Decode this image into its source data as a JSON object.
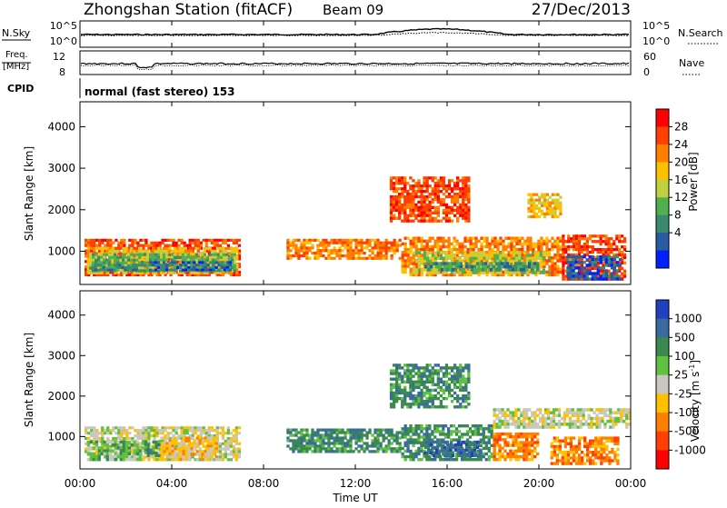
{
  "header": {
    "station": "Zhongshan Station (fitACF)",
    "beam": "Beam 09",
    "date": "27/Dec/2013"
  },
  "noise_panel": {
    "left_label": "N.Sky",
    "right_label": "N.Search",
    "left_ticks": [
      "10^5",
      "10^0"
    ],
    "right_ticks": [
      "10^5",
      "10^0"
    ]
  },
  "freq_panel": {
    "left_label_1": "Freq.",
    "left_label_2": "[MHz]",
    "right_label": "Nave",
    "left_ticks": [
      "12",
      "8"
    ],
    "right_ticks": [
      "60",
      "0"
    ],
    "cpid_label": "CPID",
    "mode_text": "normal (fast stereo) 153"
  },
  "axes": {
    "y_label": "Slant Range [km]",
    "y_ticks": [
      "4000",
      "3000",
      "2000",
      "1000"
    ],
    "x_label": "Time UT",
    "x_ticks": [
      "00:00",
      "04:00",
      "08:00",
      "12:00",
      "16:00",
      "20:00",
      "00:00"
    ]
  },
  "power_scale": {
    "label": "Power [dB]",
    "ticks": [
      "28",
      "24",
      "20",
      "16",
      "12",
      "8",
      "4"
    ],
    "colors": [
      "#ff0000",
      "#ff4000",
      "#ff8000",
      "#ffc000",
      "#c0d040",
      "#50b050",
      "#3a8a70",
      "#2a5aa0",
      "#0020ff"
    ]
  },
  "velocity_scale": {
    "label": "Velocity",
    "unit": "[m s",
    "unit_exp": "-1",
    "unit_close": "]",
    "ticks": [
      "1000",
      "500",
      "100",
      "25",
      "-25",
      "-100",
      "-500",
      "-1000"
    ],
    "colors": [
      "#2040c0",
      "#3a6aa0",
      "#3a8a50",
      "#60c040",
      "#c8c8c0",
      "#ffc000",
      "#ff8000",
      "#ff4000",
      "#ff0000"
    ]
  },
  "chart_data": [
    {
      "type": "heatmap",
      "title": "Power [dB]",
      "x_unit": "hours UT",
      "xlim": [
        0,
        24
      ],
      "ylim": [
        200,
        4600
      ],
      "patches": [
        {
          "t0": 0.2,
          "t1": 7.0,
          "r0": 400,
          "r1": 1300,
          "level": 1
        },
        {
          "t0": 0.3,
          "t1": 6.9,
          "r0": 450,
          "r1": 1100,
          "level": 3
        },
        {
          "t0": 0.4,
          "t1": 6.8,
          "r0": 500,
          "r1": 950,
          "level": 5
        },
        {
          "t0": 3.0,
          "t1": 6.6,
          "r0": 520,
          "r1": 760,
          "level": 7
        },
        {
          "t0": 0.5,
          "t1": 2.5,
          "r0": 520,
          "r1": 700,
          "level": 6
        },
        {
          "t0": 9.0,
          "t1": 14.0,
          "r0": 800,
          "r1": 1300,
          "level": 2
        },
        {
          "t0": 14.0,
          "t1": 21.0,
          "r0": 400,
          "r1": 1350,
          "level": 2
        },
        {
          "t0": 14.5,
          "t1": 20.5,
          "r0": 450,
          "r1": 1000,
          "level": 4
        },
        {
          "t0": 15.0,
          "t1": 20.0,
          "r0": 520,
          "r1": 740,
          "level": 6
        },
        {
          "t0": 21.0,
          "t1": 23.8,
          "r0": 300,
          "r1": 1400,
          "level": 1
        },
        {
          "t0": 21.2,
          "t1": 23.6,
          "r0": 300,
          "r1": 900,
          "level": 7
        },
        {
          "t0": 13.5,
          "t1": 17.0,
          "r0": 1700,
          "r1": 2800,
          "level": 1
        },
        {
          "t0": 19.5,
          "t1": 21.0,
          "r0": 1800,
          "r1": 2400,
          "level": 3
        }
      ]
    },
    {
      "type": "heatmap",
      "title": "Velocity",
      "x_unit": "hours UT",
      "xlim": [
        0,
        24
      ],
      "ylim": [
        200,
        4600
      ],
      "patches": [
        {
          "t0": 0.2,
          "t1": 7.0,
          "r0": 400,
          "r1": 1250,
          "level": 4
        },
        {
          "t0": 0.3,
          "t1": 2.8,
          "r0": 400,
          "r1": 900,
          "level": 3
        },
        {
          "t0": 3.5,
          "t1": 6.0,
          "r0": 400,
          "r1": 1000,
          "level": 5
        },
        {
          "t0": 2.8,
          "t1": 3.5,
          "r0": 500,
          "r1": 900,
          "level": 2
        },
        {
          "t0": 9.0,
          "t1": 14.0,
          "r0": 600,
          "r1": 1200,
          "level": 2
        },
        {
          "t0": 14.0,
          "t1": 18.0,
          "r0": 400,
          "r1": 1300,
          "level": 2
        },
        {
          "t0": 15.0,
          "t1": 17.5,
          "r0": 500,
          "r1": 900,
          "level": 1
        },
        {
          "t0": 18.0,
          "t1": 20.0,
          "r0": 400,
          "r1": 1100,
          "level": 6
        },
        {
          "t0": 20.5,
          "t1": 23.5,
          "r0": 300,
          "r1": 1000,
          "level": 6
        },
        {
          "t0": 18.0,
          "t1": 24.0,
          "r0": 1200,
          "r1": 1700,
          "level": 4
        },
        {
          "t0": 13.5,
          "t1": 17.0,
          "r0": 1700,
          "r1": 2800,
          "level": 2
        }
      ]
    }
  ]
}
